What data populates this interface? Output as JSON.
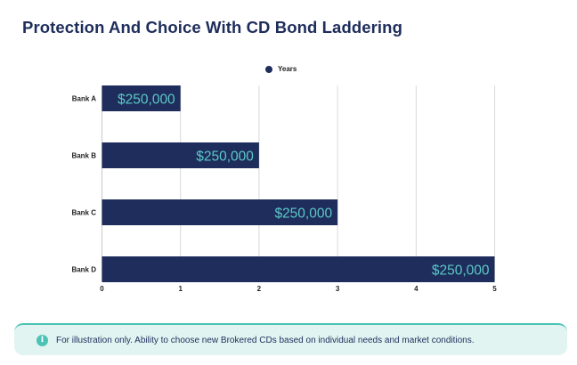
{
  "page": {
    "title": "Protection And Choice With CD Bond Laddering",
    "note_icon": "i",
    "note_text": "For illustration only. Ability to choose new Brokered CDs based on individual needs and market conditions."
  },
  "colors": {
    "bar": "#1e2d5b",
    "bar_label": "#5cc8c8",
    "title": "#1e2d5b",
    "accent": "#4cc3b6",
    "note_bg": "#e1f4f1",
    "grid": "#d9d9d9"
  },
  "chart_data": {
    "type": "bar",
    "orientation": "horizontal",
    "title": "Protection And Choice With CD Bond Laddering",
    "categories": [
      "Bank A",
      "Bank B",
      "Bank C",
      "Bank D"
    ],
    "series": [
      {
        "name": "Years",
        "values": [
          1,
          2,
          3,
          5
        ],
        "data_labels": [
          "$250,000",
          "$250,000",
          "$250,000",
          "$250,000"
        ]
      }
    ],
    "xlim": [
      0,
      5
    ],
    "xticks": [
      "0",
      "1",
      "2",
      "3",
      "4",
      "5"
    ],
    "grid": true,
    "legend": "top-center"
  }
}
